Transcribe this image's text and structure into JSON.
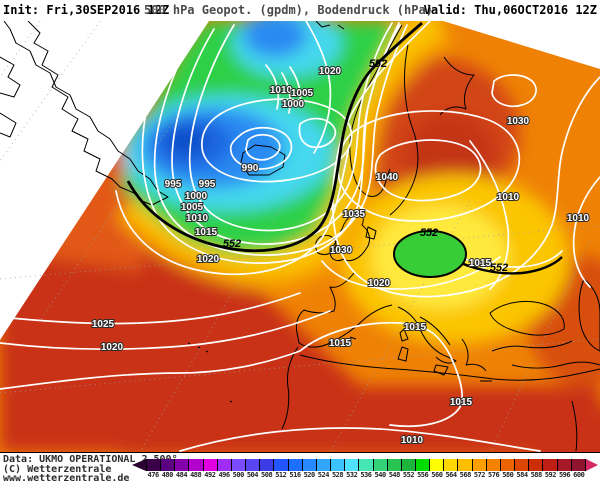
{
  "header": {
    "init": "Init: Fri,30SEP2016 12Z",
    "title": "500 hPa Geopot. (gpdm), Bodendruck (hPa)",
    "valid": "Valid: Thu,06OCT2016 12Z"
  },
  "map": {
    "pressure_labels": [
      "1020",
      "1010",
      "1005",
      "1000",
      "990",
      "995",
      "995",
      "1000",
      "1005",
      "1010",
      "1015",
      "1020",
      "1025",
      "1020",
      "1040",
      "1035",
      "1030",
      "1020",
      "1030",
      "1010",
      "1010",
      "1015",
      "1015",
      "1015",
      "1015",
      "1010"
    ],
    "geopotential_labels": [
      "552",
      "552",
      "552",
      "552"
    ]
  },
  "footer": {
    "data_source": "Data: UKMO OPERATIONAL 2.500°",
    "copyright": "(C) Wetterzentrale",
    "website": "www.wetterzentrale.de"
  },
  "colorbar": {
    "labels": [
      "476",
      "480",
      "484",
      "488",
      "492",
      "496",
      "500",
      "504",
      "508",
      "512",
      "516",
      "520",
      "524",
      "528",
      "532",
      "536",
      "540",
      "548",
      "552",
      "556",
      "560",
      "564",
      "568",
      "572",
      "576",
      "580",
      "584",
      "588",
      "592",
      "596",
      "600"
    ],
    "colors": [
      "#3a0048",
      "#5c0082",
      "#8400aa",
      "#b400cd",
      "#e100e1",
      "#a02df5",
      "#7b4bff",
      "#5a46f0",
      "#3c3ce6",
      "#2355ff",
      "#1e6eff",
      "#2888ff",
      "#32a5ff",
      "#3cc3ff",
      "#4fe1ff",
      "#46e6b4",
      "#32d278",
      "#28c350",
      "#1eb43c",
      "#00dc00",
      "#ffff00",
      "#ffd700",
      "#ffbe00",
      "#ffa000",
      "#f58200",
      "#eb6400",
      "#dc4600",
      "#cd2d05",
      "#be1e14",
      "#a51928",
      "#8f1430"
    ],
    "left_arrow_color": "#2d0033",
    "right_arrow_color": "#d42864"
  }
}
